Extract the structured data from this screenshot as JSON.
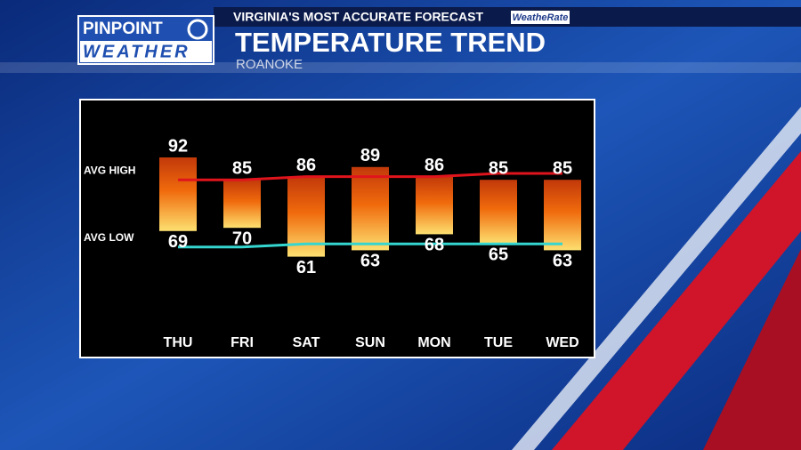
{
  "header": {
    "logo_top": "PINPOINT",
    "logo_bottom": "WEATHER",
    "banner": "VIRGINIA'S MOST ACCURATE FORECAST",
    "badge": "WeatheRate"
  },
  "chart_data": {
    "type": "range-bar",
    "title": "TEMPERATURE TREND",
    "subtitle": "ROANOKE",
    "categories": [
      "THU",
      "FRI",
      "SAT",
      "SUN",
      "MON",
      "TUE",
      "WED"
    ],
    "highs": [
      92,
      85,
      86,
      89,
      86,
      85,
      85
    ],
    "lows": [
      69,
      70,
      61,
      63,
      68,
      65,
      63
    ],
    "avg_lines": [
      {
        "name": "AVG HIGH",
        "color": "#e0141c",
        "values": [
          85,
          85,
          86,
          86,
          86,
          87,
          87
        ]
      },
      {
        "name": "AVG LOW",
        "color": "#35d6d0",
        "values": [
          64,
          64,
          65,
          65,
          65,
          65,
          65
        ]
      }
    ]
  }
}
